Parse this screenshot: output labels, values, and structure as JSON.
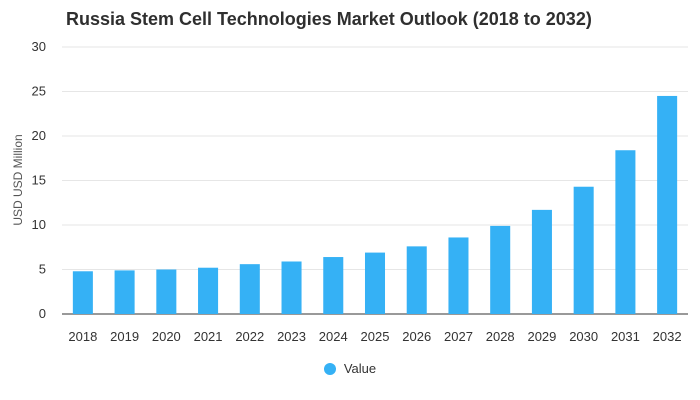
{
  "chart_data": {
    "type": "bar",
    "title": "Russia Stem Cell Technologies Market Outlook (2018 to 2032)",
    "ylabel": "USD USD Million",
    "xlabel": "",
    "ylim": [
      0,
      30
    ],
    "yticks": [
      0,
      5,
      10,
      15,
      20,
      25,
      30
    ],
    "categories": [
      "2018",
      "2019",
      "2020",
      "2021",
      "2022",
      "2023",
      "2024",
      "2025",
      "2026",
      "2027",
      "2028",
      "2029",
      "2030",
      "2031",
      "2032"
    ],
    "series": [
      {
        "name": "Value",
        "color": "#35b1f5",
        "values": [
          4.8,
          4.9,
          5.0,
          5.2,
          5.6,
          5.9,
          6.4,
          6.9,
          7.6,
          8.6,
          9.9,
          11.7,
          14.3,
          18.4,
          24.5
        ]
      }
    ],
    "grid": true,
    "legend_position": "bottom-center"
  }
}
